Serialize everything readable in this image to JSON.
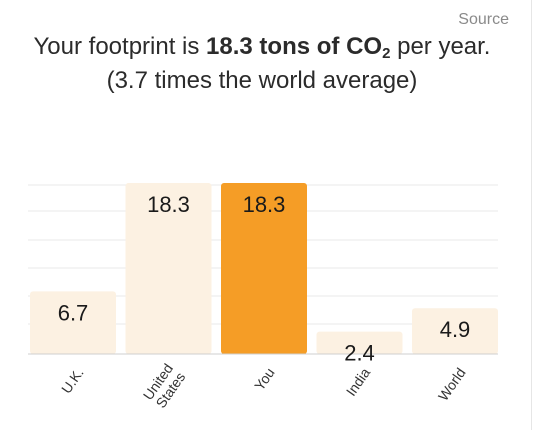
{
  "source_label": "Source",
  "headline": {
    "prefix": "Your footprint is ",
    "amount": "18.3 tons of CO",
    "subscript": "2",
    "suffix": " per year.",
    "line2": "(3.7 times the world average)"
  },
  "colors": {
    "bar_default": "#fcf1e2",
    "bar_highlight": "#f59d26",
    "gridline": "#e8e8e8",
    "axis": "#cfcfcf"
  },
  "chart_data": {
    "type": "bar",
    "categories": [
      "U.K.",
      "United States",
      "You",
      "India",
      "World"
    ],
    "values": [
      6.7,
      18.3,
      18.3,
      2.4,
      4.9
    ],
    "value_labels": [
      "6.7",
      "18.3",
      "18.3",
      "2.4",
      "4.9"
    ],
    "highlight": "You",
    "ylim": [
      0,
      18.3
    ],
    "grid": true,
    "title": "",
    "xlabel": "",
    "ylabel": ""
  }
}
